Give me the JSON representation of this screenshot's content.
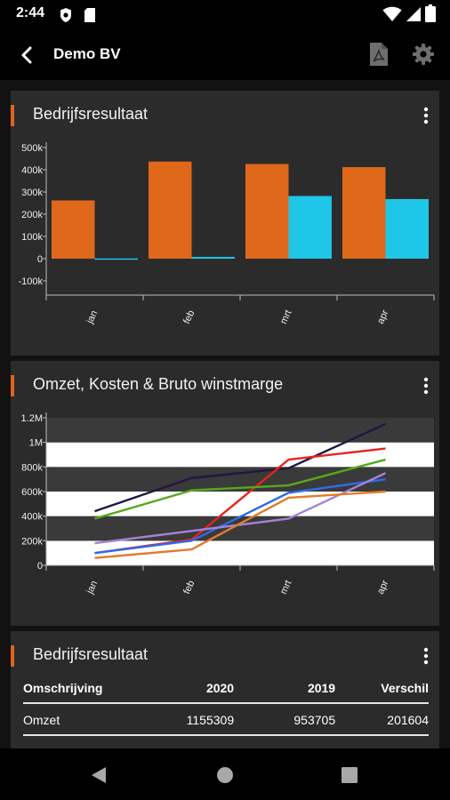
{
  "status": {
    "time": "2:44"
  },
  "appbar": {
    "title": "Demo BV"
  },
  "card1": {
    "title": "Bedrijfsresultaat"
  },
  "card2": {
    "title": "Omzet, Kosten & Bruto winstmarge"
  },
  "card3": {
    "title": "Bedrijfsresultaat",
    "columns": [
      "Omschrijving",
      "2020",
      "2019",
      "Verschil"
    ],
    "rows": [
      {
        "label": "Omzet",
        "v2020": "1155309",
        "v2019": "953705",
        "diff": "201604"
      }
    ]
  },
  "chart_data": [
    {
      "type": "bar",
      "categories": [
        "jan",
        "feb",
        "mrt",
        "apr"
      ],
      "series": [
        {
          "color": "#e0681a",
          "values": [
            262000,
            437000,
            426000,
            412000
          ]
        },
        {
          "color": "#1ec6e8",
          "values": [
            1000,
            8000,
            282000,
            268000
          ]
        }
      ],
      "ylim": [
        -100000,
        500000
      ],
      "yticks": [
        -100000,
        0,
        100000,
        200000,
        300000,
        400000,
        500000
      ],
      "ytick_labels": [
        "-100k",
        "0",
        "100k",
        "200k",
        "300k",
        "400k",
        "500k"
      ]
    },
    {
      "type": "line",
      "categories": [
        "jan",
        "feb",
        "mrt",
        "apr"
      ],
      "series": [
        {
          "color": "#231640",
          "values": [
            440000,
            710000,
            790000,
            1150000
          ]
        },
        {
          "color": "#e8231c",
          "values": [
            100000,
            210000,
            860000,
            950000
          ]
        },
        {
          "color": "#57a81c",
          "values": [
            380000,
            610000,
            650000,
            860000
          ]
        },
        {
          "color": "#2c6ce8",
          "values": [
            100000,
            200000,
            590000,
            700000
          ]
        },
        {
          "color": "#a283d8",
          "values": [
            180000,
            280000,
            380000,
            750000
          ]
        },
        {
          "color": "#e47a2c",
          "values": [
            60000,
            130000,
            550000,
            600000
          ]
        }
      ],
      "ylim": [
        0,
        1200000
      ],
      "yticks": [
        0,
        200000,
        400000,
        600000,
        800000,
        1000000,
        1200000
      ],
      "ytick_labels": [
        "0",
        "200k",
        "400k",
        "600k",
        "800k",
        "1M",
        "1.2M"
      ],
      "grid": "alternating-bands"
    }
  ]
}
